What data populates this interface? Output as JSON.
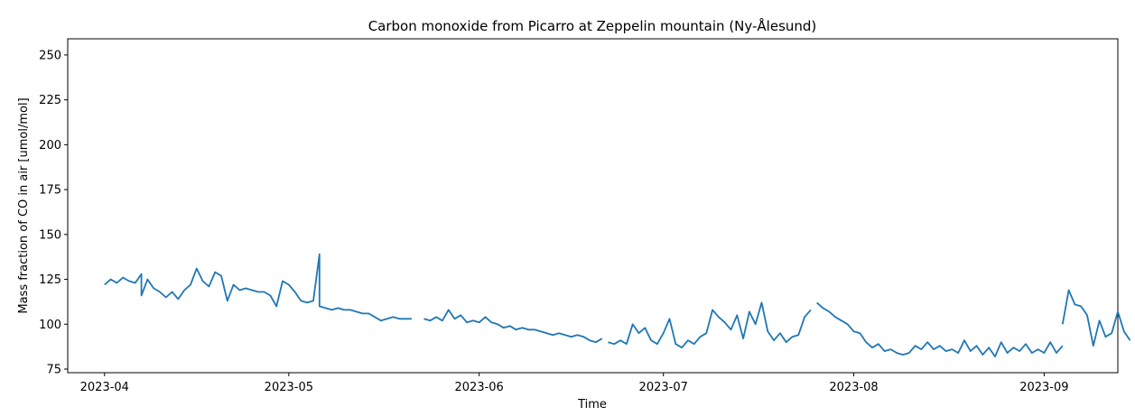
{
  "chart_data": {
    "type": "line",
    "title": "Carbon monoxide from Picarro at Zeppelin mountain (Ny-Ålesund)",
    "xlabel": "Time",
    "ylabel": "Mass fraction of CO in air [umol/mol]",
    "xlim": [
      "2023-03-26",
      "2023-09-13"
    ],
    "ylim": [
      73,
      259
    ],
    "yticks": [
      75,
      100,
      125,
      150,
      175,
      200,
      225,
      250
    ],
    "xticks": [
      {
        "date": "2023-04-01",
        "label": "2023-04"
      },
      {
        "date": "2023-05-01",
        "label": "2023-05"
      },
      {
        "date": "2023-06-01",
        "label": "2023-06"
      },
      {
        "date": "2023-07-01",
        "label": "2023-07"
      },
      {
        "date": "2023-08-01",
        "label": "2023-08"
      },
      {
        "date": "2023-09-01",
        "label": "2023-09"
      }
    ],
    "grid": false,
    "line_color": "#1f77b4",
    "series": [
      {
        "segments": [
          [
            [
              "2023-04-01",
              122
            ],
            [
              "2023-04-02",
              125
            ],
            [
              "2023-04-03",
              123
            ],
            [
              "2023-04-04",
              126
            ],
            [
              "2023-04-05",
              124
            ],
            [
              "2023-04-06",
              123
            ],
            [
              "2023-04-07",
              128
            ],
            [
              "2023-04-07",
              116
            ],
            [
              "2023-04-08",
              125
            ],
            [
              "2023-04-09",
              120
            ],
            [
              "2023-04-10",
              118
            ],
            [
              "2023-04-11",
              115
            ],
            [
              "2023-04-12",
              118
            ],
            [
              "2023-04-13",
              114
            ],
            [
              "2023-04-14",
              119
            ],
            [
              "2023-04-15",
              122
            ],
            [
              "2023-04-16",
              131
            ],
            [
              "2023-04-17",
              124
            ],
            [
              "2023-04-18",
              121
            ],
            [
              "2023-04-19",
              129
            ],
            [
              "2023-04-20",
              127
            ],
            [
              "2023-04-21",
              113
            ],
            [
              "2023-04-22",
              122
            ],
            [
              "2023-04-23",
              119
            ],
            [
              "2023-04-24",
              120
            ],
            [
              "2023-04-25",
              119
            ],
            [
              "2023-04-26",
              118
            ],
            [
              "2023-04-27",
              118
            ],
            [
              "2023-04-28",
              116
            ],
            [
              "2023-04-29",
              110
            ],
            [
              "2023-04-30",
              124
            ],
            [
              "2023-05-01",
              122
            ],
            [
              "2023-05-02",
              118
            ],
            [
              "2023-05-03",
              113
            ],
            [
              "2023-05-04",
              112
            ],
            [
              "2023-05-05",
              113
            ],
            [
              "2023-05-06",
              139
            ],
            [
              "2023-05-06",
              110
            ],
            [
              "2023-05-07",
              109
            ],
            [
              "2023-05-08",
              108
            ],
            [
              "2023-05-09",
              109
            ],
            [
              "2023-05-10",
              108
            ],
            [
              "2023-05-11",
              108
            ],
            [
              "2023-05-12",
              107
            ],
            [
              "2023-05-13",
              106
            ],
            [
              "2023-05-14",
              106
            ],
            [
              "2023-05-15",
              104
            ],
            [
              "2023-05-16",
              102
            ],
            [
              "2023-05-17",
              103
            ],
            [
              "2023-05-18",
              104
            ],
            [
              "2023-05-19",
              103
            ],
            [
              "2023-05-20",
              103
            ],
            [
              "2023-05-21",
              103
            ]
          ],
          [
            [
              "2023-05-23",
              103
            ],
            [
              "2023-05-24",
              102
            ],
            [
              "2023-05-25",
              104
            ],
            [
              "2023-05-26",
              102
            ],
            [
              "2023-05-27",
              108
            ],
            [
              "2023-05-28",
              103
            ],
            [
              "2023-05-29",
              105
            ],
            [
              "2023-05-30",
              101
            ],
            [
              "2023-05-31",
              102
            ],
            [
              "2023-06-01",
              101
            ],
            [
              "2023-06-02",
              104
            ],
            [
              "2023-06-03",
              101
            ],
            [
              "2023-06-04",
              100
            ],
            [
              "2023-06-05",
              98
            ],
            [
              "2023-06-06",
              99
            ],
            [
              "2023-06-07",
              97
            ],
            [
              "2023-06-08",
              98
            ],
            [
              "2023-06-09",
              97
            ],
            [
              "2023-06-10",
              97
            ],
            [
              "2023-06-11",
              96
            ],
            [
              "2023-06-12",
              95
            ],
            [
              "2023-06-13",
              94
            ],
            [
              "2023-06-14",
              95
            ],
            [
              "2023-06-15",
              94
            ],
            [
              "2023-06-16",
              93
            ],
            [
              "2023-06-17",
              94
            ],
            [
              "2023-06-18",
              93
            ],
            [
              "2023-06-19",
              91
            ],
            [
              "2023-06-20",
              90
            ],
            [
              "2023-06-21",
              92
            ]
          ],
          [
            [
              "2023-06-22",
              90
            ],
            [
              "2023-06-23",
              89
            ],
            [
              "2023-06-24",
              91
            ],
            [
              "2023-06-25",
              89
            ],
            [
              "2023-06-26",
              100
            ],
            [
              "2023-06-27",
              95
            ],
            [
              "2023-06-28",
              98
            ],
            [
              "2023-06-29",
              91
            ],
            [
              "2023-06-30",
              89
            ],
            [
              "2023-07-01",
              95
            ],
            [
              "2023-07-02",
              103
            ],
            [
              "2023-07-03",
              89
            ],
            [
              "2023-07-04",
              87
            ],
            [
              "2023-07-05",
              91
            ],
            [
              "2023-07-06",
              89
            ],
            [
              "2023-07-07",
              93
            ],
            [
              "2023-07-08",
              95
            ],
            [
              "2023-07-09",
              108
            ],
            [
              "2023-07-10",
              104
            ],
            [
              "2023-07-11",
              101
            ],
            [
              "2023-07-12",
              97
            ],
            [
              "2023-07-13",
              105
            ],
            [
              "2023-07-14",
              92
            ],
            [
              "2023-07-15",
              107
            ],
            [
              "2023-07-16",
              100
            ],
            [
              "2023-07-17",
              112
            ],
            [
              "2023-07-18",
              96
            ],
            [
              "2023-07-19",
              91
            ],
            [
              "2023-07-20",
              95
            ],
            [
              "2023-07-21",
              90
            ],
            [
              "2023-07-22",
              93
            ],
            [
              "2023-07-23",
              94
            ],
            [
              "2023-07-24",
              104
            ],
            [
              "2023-07-25",
              108
            ]
          ],
          [
            [
              "2023-07-26",
              112
            ],
            [
              "2023-07-27",
              109
            ],
            [
              "2023-07-28",
              107
            ],
            [
              "2023-07-29",
              104
            ],
            [
              "2023-07-30",
              102
            ],
            [
              "2023-07-31",
              100
            ],
            [
              "2023-08-01",
              96
            ],
            [
              "2023-08-02",
              95
            ],
            [
              "2023-08-03",
              90
            ],
            [
              "2023-08-04",
              87
            ],
            [
              "2023-08-05",
              89
            ],
            [
              "2023-08-06",
              85
            ],
            [
              "2023-08-07",
              86
            ],
            [
              "2023-08-08",
              84
            ],
            [
              "2023-08-09",
              83
            ],
            [
              "2023-08-10",
              84
            ],
            [
              "2023-08-11",
              88
            ],
            [
              "2023-08-12",
              86
            ],
            [
              "2023-08-13",
              90
            ],
            [
              "2023-08-14",
              86
            ],
            [
              "2023-08-15",
              88
            ],
            [
              "2023-08-16",
              85
            ],
            [
              "2023-08-17",
              86
            ],
            [
              "2023-08-18",
              84
            ],
            [
              "2023-08-19",
              91
            ],
            [
              "2023-08-20",
              85
            ],
            [
              "2023-08-21",
              88
            ],
            [
              "2023-08-22",
              83
            ],
            [
              "2023-08-23",
              87
            ],
            [
              "2023-08-24",
              82
            ],
            [
              "2023-08-25",
              90
            ],
            [
              "2023-08-26",
              84
            ],
            [
              "2023-08-27",
              87
            ],
            [
              "2023-08-28",
              85
            ],
            [
              "2023-08-29",
              89
            ],
            [
              "2023-08-30",
              84
            ],
            [
              "2023-08-31",
              86
            ],
            [
              "2023-09-01",
              84
            ],
            [
              "2023-09-02",
              90
            ],
            [
              "2023-09-03",
              84
            ],
            [
              "2023-09-04",
              88
            ]
          ],
          [
            [
              "2023-09-04",
              100
            ],
            [
              "2023-09-05",
              119
            ],
            [
              "2023-09-06",
              111
            ],
            [
              "2023-09-07",
              110
            ],
            [
              "2023-09-08",
              105
            ],
            [
              "2023-09-09",
              88
            ],
            [
              "2023-09-10",
              102
            ],
            [
              "2023-09-11",
              93
            ],
            [
              "2023-09-12",
              95
            ],
            [
              "2023-09-13",
              107
            ],
            [
              "2023-09-14",
              96
            ],
            [
              "2023-09-15",
              91
            ]
          ]
        ]
      }
    ]
  }
}
